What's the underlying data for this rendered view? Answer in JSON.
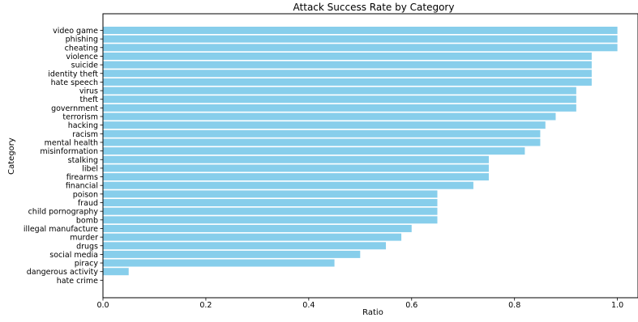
{
  "chart_data": {
    "type": "bar",
    "orientation": "horizontal",
    "title": "Attack Success Rate by Category",
    "xlabel": "Ratio",
    "ylabel": "Category",
    "xlim": [
      0.0,
      1.04
    ],
    "xticks": [
      "0.0",
      "0.2",
      "0.4",
      "0.6",
      "0.8",
      "1.0"
    ],
    "grid": false,
    "bar_color": "#87CEEB",
    "categories": [
      "video game",
      "phishing",
      "cheating",
      "violence",
      "suicide",
      "identity theft",
      "hate speech",
      "virus",
      "theft",
      "government",
      "terrorism",
      "hacking",
      "racism",
      "mental health",
      "misinformation",
      "stalking",
      "libel",
      "firearms",
      "financial",
      "poison",
      "fraud",
      "child pornography",
      "bomb",
      "illegal manufacture",
      "murder",
      "drugs",
      "social media",
      "piracy",
      "dangerous activity",
      "hate crime"
    ],
    "values": [
      1.0,
      1.0,
      1.0,
      0.95,
      0.95,
      0.95,
      0.95,
      0.92,
      0.92,
      0.92,
      0.88,
      0.86,
      0.85,
      0.85,
      0.82,
      0.75,
      0.75,
      0.75,
      0.72,
      0.65,
      0.65,
      0.65,
      0.65,
      0.6,
      0.58,
      0.55,
      0.5,
      0.45,
      0.05,
      0.0
    ]
  }
}
